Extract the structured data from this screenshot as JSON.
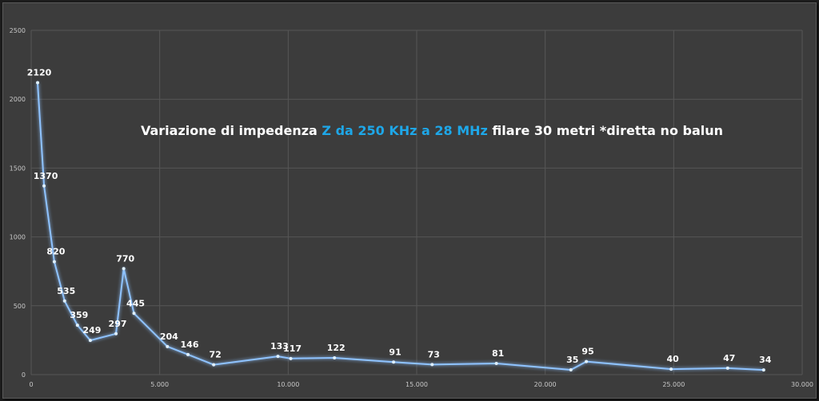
{
  "chart_data": {
    "type": "line",
    "title_parts": [
      {
        "text": "Variazione di impedenza ",
        "highlight": false
      },
      {
        "text": "Z da 250 KHz a 28 MHz",
        "highlight": true
      },
      {
        "text": " filare 30 metri *diretta no balun",
        "highlight": false
      }
    ],
    "x": [
      250,
      500,
      900,
      1300,
      1800,
      2300,
      3300,
      3600,
      4000,
      5300,
      6100,
      7100,
      9600,
      10100,
      11800,
      14100,
      15600,
      18100,
      21000,
      21600,
      24900,
      27100,
      28500
    ],
    "y": [
      2120,
      1370,
      820,
      535,
      359,
      249,
      297,
      770,
      445,
      204,
      146,
      72,
      133,
      117,
      122,
      91,
      73,
      81,
      35,
      95,
      40,
      47,
      34
    ],
    "labels": [
      "2120",
      "1370",
      "820",
      "535",
      "359",
      "249",
      "297",
      "770",
      "445",
      "204",
      "146",
      "72",
      "133",
      "117",
      "122",
      "91",
      "73",
      "81",
      "35",
      "95",
      "40",
      "47",
      "34"
    ],
    "xlim": [
      0,
      30000
    ],
    "ylim": [
      0,
      2500
    ],
    "xticks": [
      0,
      5000,
      10000,
      15000,
      20000,
      25000,
      30000
    ],
    "xtick_labels": [
      "0",
      "5.000",
      "10.000",
      "15.000",
      "20.000",
      "25.000",
      "30.000"
    ],
    "yticks": [
      0,
      500,
      1000,
      1500,
      2000,
      2500
    ],
    "ytick_labels": [
      "0",
      "500",
      "1000",
      "1500",
      "2000",
      "2500"
    ],
    "grid": true,
    "line_color": "#8fc3ff",
    "highlight_color": "#1ea7e8",
    "background": "#3c3c3c",
    "grid_color": "#565656"
  }
}
